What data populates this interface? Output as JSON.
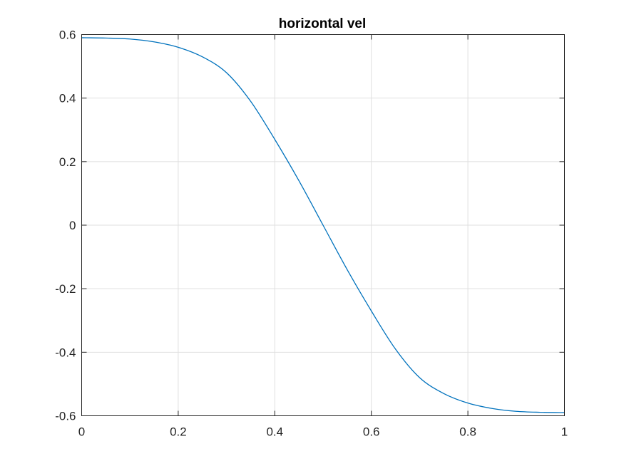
{
  "chart_data": {
    "type": "line",
    "title": "horizontal vel",
    "xlabel": "",
    "ylabel": "",
    "xlim": [
      0,
      1
    ],
    "ylim": [
      -0.6,
      0.6
    ],
    "grid": true,
    "x_ticks": [
      0,
      0.2,
      0.4,
      0.6,
      0.8,
      1
    ],
    "x_tick_labels": [
      "0",
      "0.2",
      "0.4",
      "0.6",
      "0.8",
      "1"
    ],
    "y_ticks": [
      0.6,
      0.4,
      0.2,
      0,
      -0.2,
      -0.4,
      -0.6
    ],
    "y_tick_labels": [
      "0.6",
      "0.4",
      "0.2",
      "0",
      "-0.2",
      "-0.4",
      "-0.6"
    ],
    "series": [
      {
        "color": "#0072bd",
        "x": [
          0,
          0.05,
          0.1,
          0.15,
          0.2,
          0.25,
          0.3,
          0.35,
          0.4,
          0.45,
          0.5,
          0.55,
          0.6,
          0.65,
          0.7,
          0.75,
          0.8,
          0.85,
          0.9,
          0.95,
          1
        ],
        "y": [
          0.59,
          0.589,
          0.586,
          0.577,
          0.56,
          0.53,
          0.48,
          0.39,
          0.27,
          0.14,
          0.0,
          -0.14,
          -0.27,
          -0.39,
          -0.48,
          -0.53,
          -0.56,
          -0.577,
          -0.586,
          -0.589,
          -0.59
        ]
      }
    ]
  }
}
